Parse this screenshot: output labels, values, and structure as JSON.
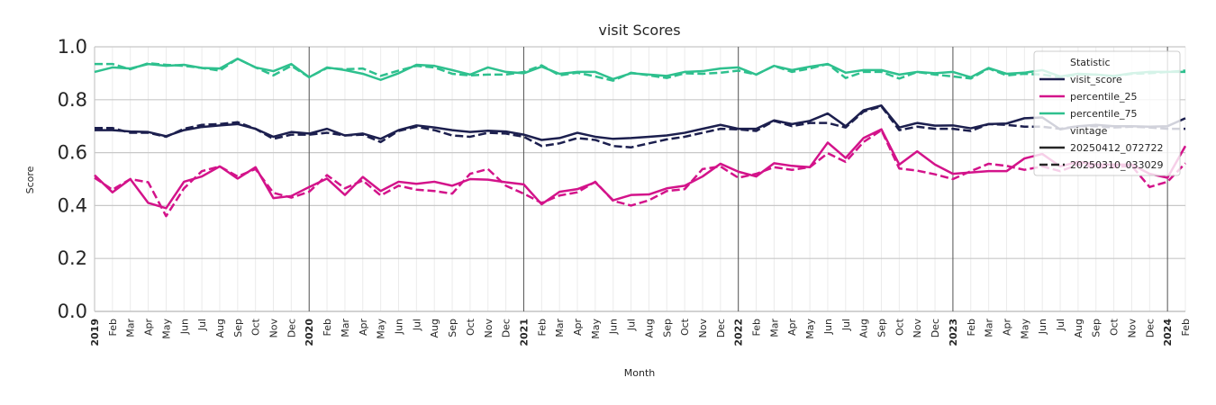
{
  "chart_data": {
    "type": "line",
    "title": "visit Scores",
    "xlabel": "Month",
    "ylabel": "Score",
    "ylim": [
      0.0,
      1.0
    ],
    "yticks": [
      0.0,
      0.2,
      0.4,
      0.6,
      0.8,
      1.0
    ],
    "ytick_labels": [
      "0.0",
      "0.2",
      "0.4",
      "0.6",
      "0.8",
      "1.0"
    ],
    "x_months": [
      "2019",
      "Feb",
      "Mar",
      "Apr",
      "May",
      "Jun",
      "Jul",
      "Aug",
      "Sep",
      "Oct",
      "Nov",
      "Dec",
      "2020",
      "Feb",
      "Mar",
      "Apr",
      "May",
      "Jun",
      "Jul",
      "Aug",
      "Sep",
      "Oct",
      "Nov",
      "Dec",
      "2021",
      "Feb",
      "Mar",
      "Apr",
      "May",
      "Jun",
      "Jul",
      "Aug",
      "Sep",
      "Oct",
      "Nov",
      "Dec",
      "2022",
      "Feb",
      "Mar",
      "Apr",
      "May",
      "Jun",
      "Jul",
      "Aug",
      "Sep",
      "Oct",
      "Nov",
      "Dec",
      "2023",
      "Feb",
      "Mar",
      "Apr",
      "May",
      "Jun",
      "Jul",
      "Aug",
      "Sep",
      "Oct",
      "Nov",
      "Dec",
      "2024",
      "Feb"
    ],
    "year_boundaries": [
      "2020",
      "2021",
      "2022",
      "2023",
      "2024"
    ],
    "legend": {
      "position": "top-right",
      "statistic_title": "Statistic",
      "vintage_title": "vintage",
      "statistic_entries": [
        "visit_score",
        "percentile_25",
        "percentile_75"
      ],
      "vintage_entries": [
        "20250412_072722",
        "20250310_033029"
      ]
    },
    "colors": {
      "visit_score": "#1c1f4e",
      "percentile_25": "#d3138a",
      "percentile_75": "#2ec08e",
      "grid": "#c8c8c8",
      "minor_grid": "#ebebeb",
      "year_line": "#555555"
    },
    "series": [
      {
        "name": "visit_score",
        "vintage": "20250412_072722",
        "style": "solid",
        "values": [
          0.685,
          0.685,
          0.68,
          0.678,
          0.662,
          0.685,
          0.697,
          0.703,
          0.708,
          0.69,
          0.66,
          0.678,
          0.672,
          0.69,
          0.665,
          0.672,
          0.652,
          0.685,
          0.703,
          0.695,
          0.685,
          0.678,
          0.683,
          0.68,
          0.668,
          0.648,
          0.655,
          0.675,
          0.66,
          0.652,
          0.655,
          0.66,
          0.665,
          0.675,
          0.69,
          0.705,
          0.69,
          0.69,
          0.722,
          0.708,
          0.72,
          0.748,
          0.7,
          0.76,
          0.778,
          0.695,
          0.712,
          0.702,
          0.703,
          0.692,
          0.708,
          0.71,
          0.73,
          0.733,
          0.688,
          0.7,
          0.705,
          0.7,
          0.7,
          0.698,
          0.7,
          0.73
        ]
      },
      {
        "name": "visit_score",
        "vintage": "20250310_033029",
        "style": "dashed",
        "values": [
          0.693,
          0.693,
          0.675,
          0.675,
          0.66,
          0.69,
          0.705,
          0.708,
          0.715,
          0.69,
          0.652,
          0.668,
          0.668,
          0.675,
          0.665,
          0.668,
          0.64,
          0.682,
          0.698,
          0.685,
          0.665,
          0.66,
          0.675,
          0.672,
          0.66,
          0.625,
          0.635,
          0.655,
          0.648,
          0.625,
          0.62,
          0.635,
          0.65,
          0.66,
          0.675,
          0.69,
          0.688,
          0.682,
          0.72,
          0.7,
          0.712,
          0.712,
          0.695,
          0.755,
          0.775,
          0.685,
          0.698,
          0.69,
          0.69,
          0.682,
          0.708,
          0.705,
          0.698,
          0.698,
          0.69,
          0.7,
          0.7,
          0.695,
          0.698,
          0.695,
          0.69,
          0.69
        ]
      },
      {
        "name": "percentile_25",
        "vintage": "20250412_072722",
        "style": "solid",
        "values": [
          0.515,
          0.45,
          0.5,
          0.41,
          0.39,
          0.49,
          0.51,
          0.548,
          0.502,
          0.545,
          0.428,
          0.436,
          0.47,
          0.502,
          0.44,
          0.508,
          0.455,
          0.49,
          0.482,
          0.49,
          0.475,
          0.5,
          0.498,
          0.488,
          0.48,
          0.405,
          0.452,
          0.462,
          0.488,
          0.42,
          0.44,
          0.442,
          0.465,
          0.475,
          0.51,
          0.558,
          0.528,
          0.51,
          0.56,
          0.55,
          0.545,
          0.638,
          0.58,
          0.655,
          0.688,
          0.555,
          0.605,
          0.555,
          0.52,
          0.525,
          0.53,
          0.53,
          0.578,
          0.595,
          0.548,
          0.565,
          0.555,
          0.555,
          0.555,
          0.52,
          0.505,
          0.625
        ]
      },
      {
        "name": "percentile_25",
        "vintage": "20250310_033029",
        "style": "dashed",
        "values": [
          0.505,
          0.46,
          0.5,
          0.488,
          0.36,
          0.465,
          0.53,
          0.548,
          0.51,
          0.538,
          0.448,
          0.43,
          0.452,
          0.515,
          0.465,
          0.495,
          0.438,
          0.475,
          0.46,
          0.455,
          0.445,
          0.52,
          0.538,
          0.475,
          0.445,
          0.41,
          0.438,
          0.45,
          0.49,
          0.418,
          0.4,
          0.42,
          0.455,
          0.462,
          0.538,
          0.548,
          0.505,
          0.52,
          0.545,
          0.535,
          0.545,
          0.598,
          0.565,
          0.64,
          0.685,
          0.54,
          0.532,
          0.518,
          0.5,
          0.53,
          0.558,
          0.55,
          0.535,
          0.548,
          0.53,
          0.555,
          0.545,
          0.545,
          0.55,
          0.47,
          0.49,
          0.56
        ]
      },
      {
        "name": "percentile_75",
        "vintage": "20250412_072722",
        "style": "solid",
        "values": [
          0.905,
          0.922,
          0.918,
          0.935,
          0.928,
          0.932,
          0.92,
          0.918,
          0.955,
          0.922,
          0.908,
          0.935,
          0.885,
          0.922,
          0.912,
          0.898,
          0.875,
          0.9,
          0.932,
          0.928,
          0.912,
          0.895,
          0.922,
          0.905,
          0.9,
          0.925,
          0.898,
          0.905,
          0.905,
          0.878,
          0.9,
          0.895,
          0.89,
          0.905,
          0.908,
          0.918,
          0.922,
          0.895,
          0.928,
          0.912,
          0.925,
          0.935,
          0.902,
          0.912,
          0.912,
          0.895,
          0.905,
          0.9,
          0.905,
          0.885,
          0.92,
          0.898,
          0.902,
          0.912,
          0.888,
          0.898,
          0.895,
          0.89,
          0.9,
          0.905,
          0.905,
          0.905
        ]
      },
      {
        "name": "percentile_75",
        "vintage": "20250310_033029",
        "style": "dashed",
        "values": [
          0.935,
          0.935,
          0.915,
          0.938,
          0.932,
          0.928,
          0.92,
          0.91,
          0.955,
          0.922,
          0.892,
          0.928,
          0.885,
          0.92,
          0.915,
          0.918,
          0.89,
          0.91,
          0.928,
          0.922,
          0.898,
          0.892,
          0.895,
          0.895,
          0.905,
          0.93,
          0.892,
          0.902,
          0.888,
          0.872,
          0.902,
          0.892,
          0.882,
          0.9,
          0.898,
          0.902,
          0.91,
          0.895,
          0.928,
          0.905,
          0.918,
          0.935,
          0.882,
          0.905,
          0.905,
          0.88,
          0.905,
          0.895,
          0.888,
          0.88,
          0.918,
          0.892,
          0.898,
          0.895,
          0.885,
          0.895,
          0.895,
          0.888,
          0.898,
          0.9,
          0.905,
          0.91
        ]
      }
    ]
  }
}
